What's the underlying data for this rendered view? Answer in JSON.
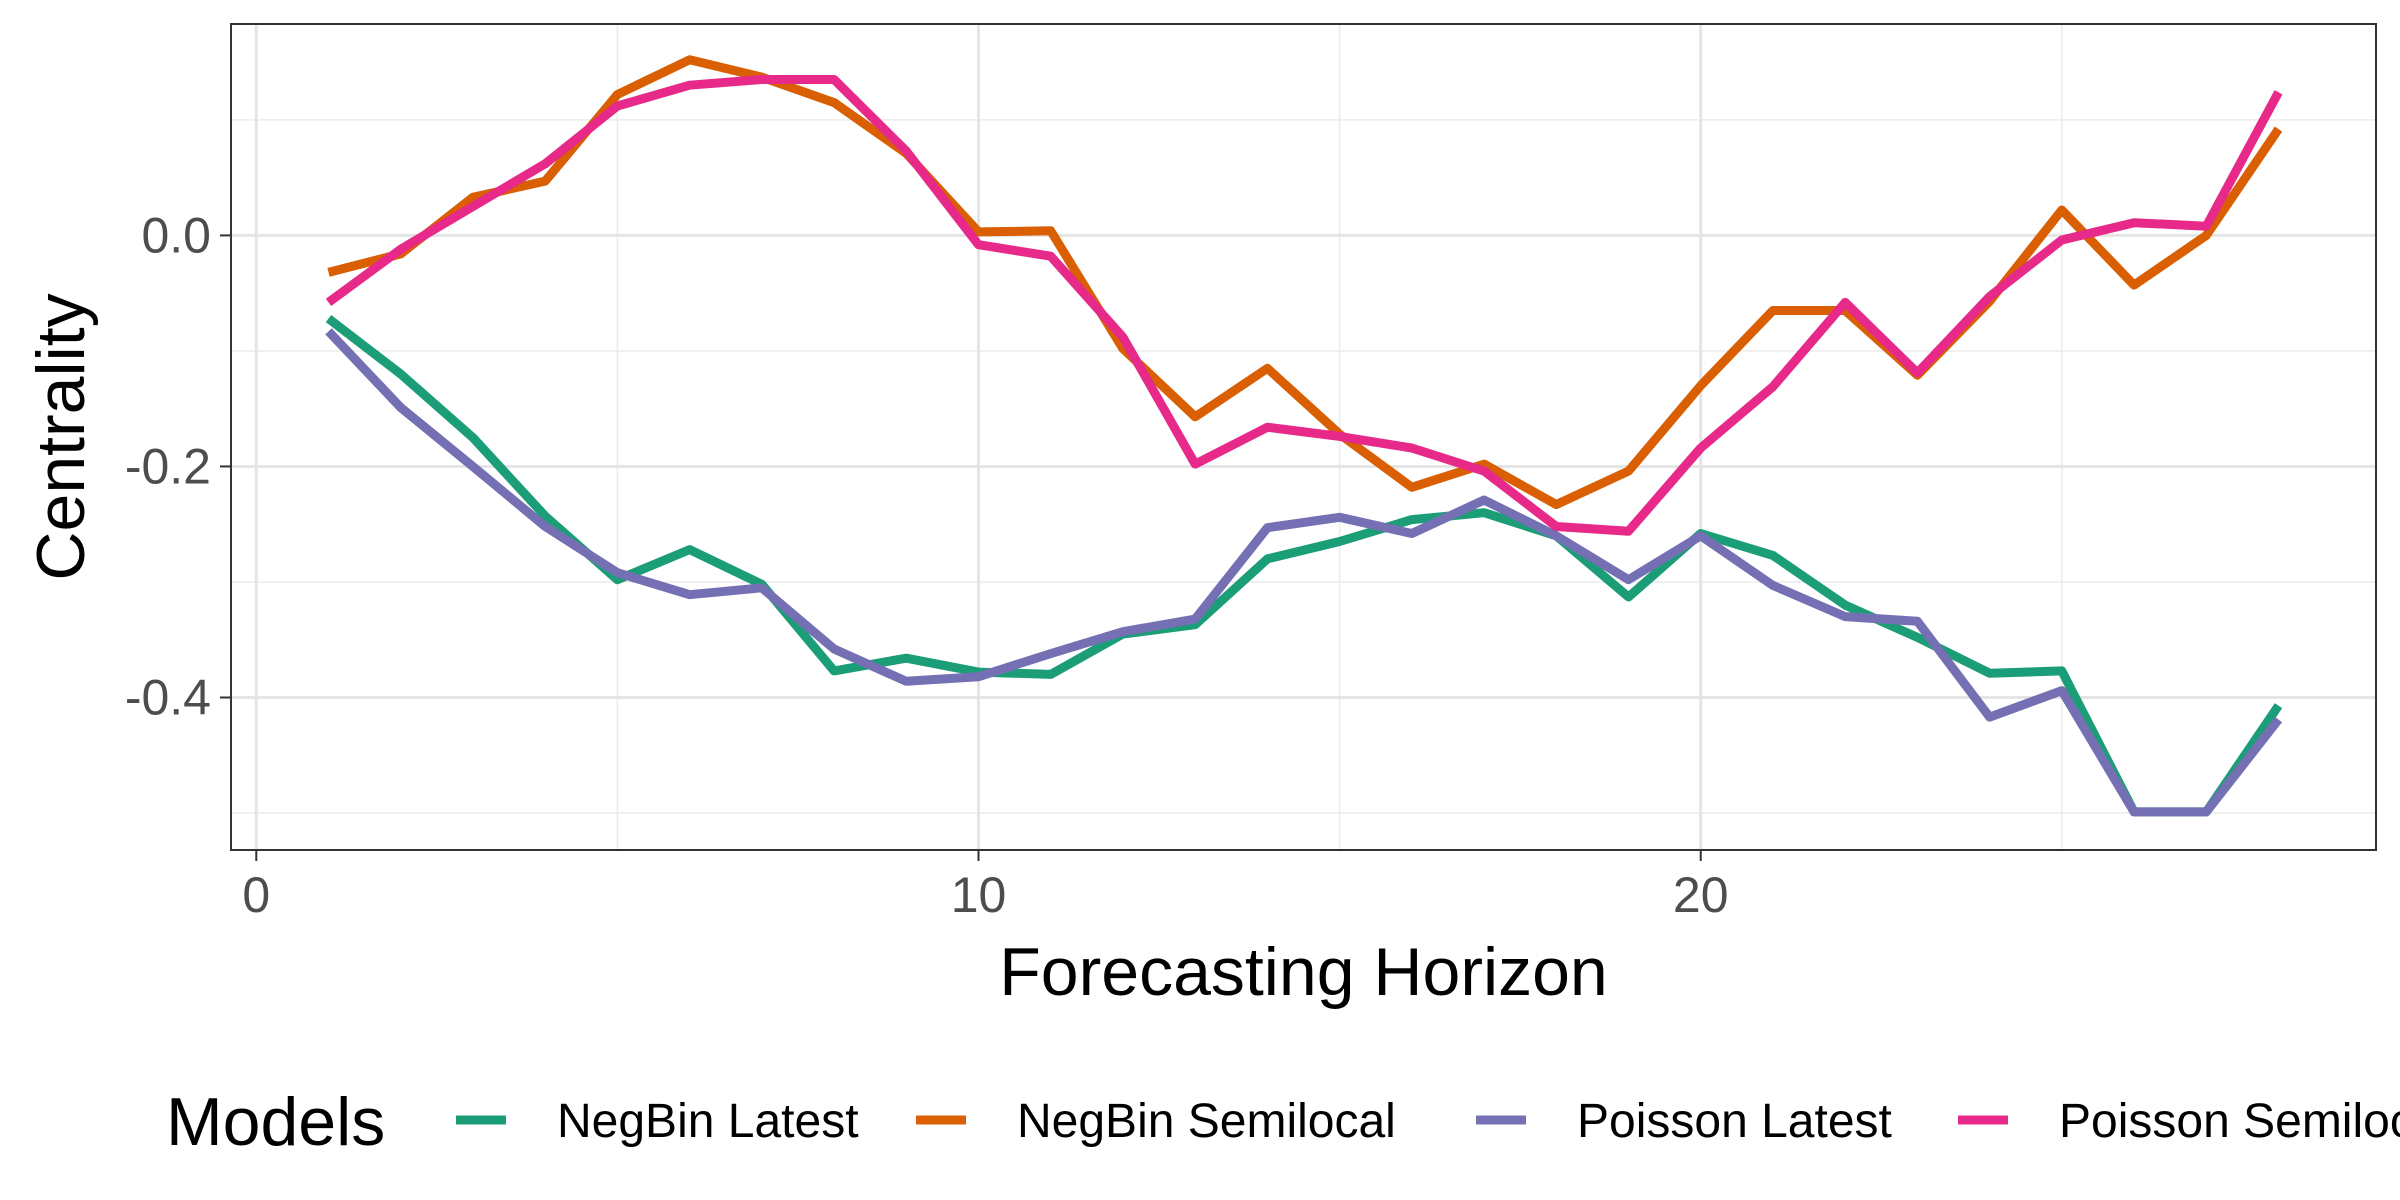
{
  "chart_data": {
    "type": "line",
    "xlabel": "Forecasting Horizon",
    "ylabel": "Centrality",
    "xlim": [
      -0.35,
      29.35
    ],
    "ylim": [
      -0.532,
      0.183
    ],
    "x_major_ticks": [
      0,
      10,
      20
    ],
    "x_minor_ticks": [
      5,
      15,
      25
    ],
    "y_major_ticks": [
      0.0,
      -0.2,
      -0.4
    ],
    "y_minor_ticks": [
      0.1,
      -0.1,
      -0.3,
      -0.5
    ],
    "x_tick_labels": [
      "0",
      "10",
      "20"
    ],
    "y_tick_labels": [
      "0.0",
      "-0.2",
      "-0.4"
    ],
    "grid": true,
    "legend": {
      "title": "Models",
      "placement": "bottom"
    },
    "x": [
      1,
      2,
      3,
      4,
      5,
      6,
      7,
      8,
      9,
      10,
      11,
      12,
      13,
      14,
      15,
      16,
      17,
      18,
      19,
      20,
      21,
      22,
      23,
      24,
      25,
      26,
      27,
      28
    ],
    "series": [
      {
        "name": "NegBin Latest",
        "color": "#1b9e77",
        "values": [
          -0.072,
          -0.12,
          -0.175,
          -0.243,
          -0.298,
          -0.272,
          -0.302,
          -0.377,
          -0.366,
          -0.378,
          -0.38,
          -0.345,
          -0.337,
          -0.28,
          -0.265,
          -0.246,
          -0.24,
          -0.26,
          -0.313,
          -0.258,
          -0.277,
          -0.32,
          -0.348,
          -0.379,
          -0.377,
          -0.499,
          -0.499,
          -0.407
        ]
      },
      {
        "name": "NegBin Semilocal",
        "color": "#d95f02",
        "values": [
          -0.032,
          -0.016,
          0.033,
          0.047,
          0.122,
          0.152,
          0.137,
          0.115,
          0.071,
          0.003,
          0.004,
          -0.098,
          -0.157,
          -0.115,
          -0.172,
          -0.218,
          -0.198,
          -0.233,
          -0.204,
          -0.13,
          -0.065,
          -0.065,
          -0.121,
          -0.057,
          0.022,
          -0.043,
          0.0,
          0.092
        ]
      },
      {
        "name": "Poisson Latest",
        "color": "#7570b3",
        "values": [
          -0.083,
          -0.149,
          -0.2,
          -0.252,
          -0.292,
          -0.311,
          -0.305,
          -0.358,
          -0.386,
          -0.382,
          -0.362,
          -0.343,
          -0.332,
          -0.253,
          -0.244,
          -0.258,
          -0.229,
          -0.26,
          -0.298,
          -0.26,
          -0.303,
          -0.33,
          -0.334,
          -0.417,
          -0.394,
          -0.499,
          -0.499,
          -0.419
        ]
      },
      {
        "name": "Poisson Semilocal",
        "color": "#e7298a",
        "values": [
          -0.058,
          -0.012,
          0.025,
          0.062,
          0.112,
          0.13,
          0.135,
          0.135,
          0.073,
          -0.008,
          -0.018,
          -0.088,
          -0.198,
          -0.166,
          -0.174,
          -0.184,
          -0.204,
          -0.252,
          -0.256,
          -0.184,
          -0.131,
          -0.058,
          -0.119,
          -0.053,
          -0.004,
          0.011,
          0.008,
          0.124
        ]
      }
    ]
  }
}
